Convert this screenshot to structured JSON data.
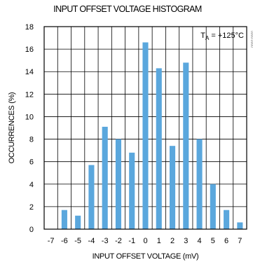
{
  "colors": {
    "bar": "#5aa7dd",
    "grid": "#000000",
    "background": "#ffffff"
  },
  "chart_data": {
    "type": "bar",
    "title": "INPUT OFFSET VOLTAGE HISTOGRAM",
    "xlabel": "INPUT OFFSET VOLTAGE (mV)",
    "ylabel": "OCCURRENCES (%)",
    "x": [
      -6,
      -5,
      -4,
      -3,
      -2,
      -1,
      0,
      1,
      2,
      3,
      4,
      5,
      6,
      7
    ],
    "values": [
      1.7,
      1.2,
      5.7,
      9.1,
      8.0,
      6.8,
      16.6,
      14.3,
      7.4,
      14.8,
      8.0,
      4.0,
      1.7,
      0.6
    ],
    "xlim": [
      -7.5,
      7.5
    ],
    "ylim": [
      0,
      18
    ],
    "xticks": [
      "-7",
      "-6",
      "-5",
      "-4",
      "-3",
      "-2",
      "-1",
      "0",
      "1",
      "2",
      "3",
      "4",
      "5",
      "6",
      "7"
    ],
    "yticks": [
      "0",
      "2",
      "4",
      "6",
      "8",
      "10",
      "12",
      "14",
      "16",
      "18"
    ],
    "grid": true,
    "annotation": {
      "text": "T",
      "sub": "A",
      "rest": " = +125°C",
      "placement": "top-right"
    },
    "side_mark": "0000-0000"
  }
}
